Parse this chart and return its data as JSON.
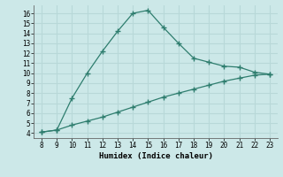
{
  "x": [
    8,
    9,
    10,
    11,
    12,
    13,
    14,
    15,
    16,
    17,
    18,
    19,
    20,
    21,
    22,
    23
  ],
  "y_upper": [
    4.1,
    4.3,
    7.5,
    10.0,
    12.2,
    14.2,
    16.0,
    16.3,
    14.6,
    13.0,
    11.5,
    11.1,
    10.7,
    10.6,
    10.1,
    9.9
  ],
  "y_lower": [
    4.1,
    4.3,
    4.8,
    5.2,
    5.6,
    6.1,
    6.6,
    7.1,
    7.6,
    8.0,
    8.4,
    8.8,
    9.2,
    9.5,
    9.8,
    9.9
  ],
  "line_color": "#2e7d6e",
  "bg_color": "#cce8e8",
  "grid_color": "#b8d8d8",
  "xlabel": "Humidex (Indice chaleur)",
  "xlim": [
    7.5,
    23.5
  ],
  "ylim": [
    3.5,
    16.8
  ],
  "xticks": [
    8,
    9,
    10,
    11,
    12,
    13,
    14,
    15,
    16,
    17,
    18,
    19,
    20,
    21,
    22,
    23
  ],
  "yticks": [
    4,
    5,
    6,
    7,
    8,
    9,
    10,
    11,
    12,
    13,
    14,
    15,
    16
  ]
}
